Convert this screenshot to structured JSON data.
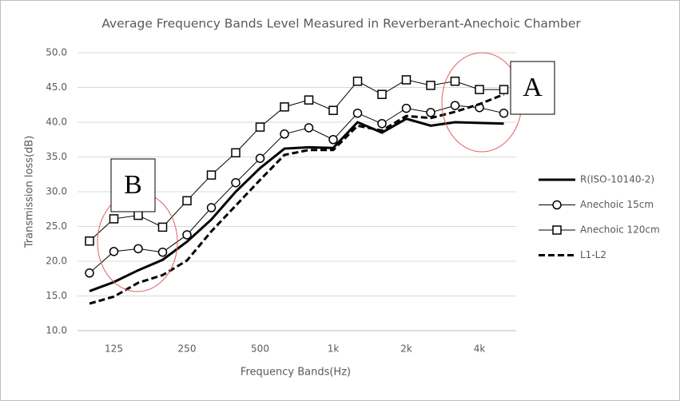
{
  "chart_data": {
    "type": "line",
    "title": "Average Frequency Bands Level Measured in Reverberant-Anechoic Chamber",
    "x_label": "Frequency Bands(Hz)",
    "y_label": "Transmission loss(dB)",
    "categories": [
      null,
      "125",
      null,
      null,
      "250",
      null,
      null,
      "500",
      null,
      null,
      "1k",
      null,
      null,
      "2k",
      null,
      null,
      "4k",
      null
    ],
    "ylim": [
      10,
      50
    ],
    "yticks": [
      {
        "value": 10,
        "label": "10.0"
      },
      {
        "value": 15,
        "label": "15.0"
      },
      {
        "value": 20,
        "label": "20.0"
      },
      {
        "value": 25,
        "label": "25.0"
      },
      {
        "value": 30,
        "label": "30.0"
      },
      {
        "value": 35,
        "label": "35.0"
      },
      {
        "value": 40,
        "label": "40.0"
      },
      {
        "value": 45,
        "label": "45.0"
      },
      {
        "value": 50,
        "label": "50.0"
      }
    ],
    "grid": true,
    "legend": "right",
    "series": [
      {
        "name": "R(ISO-10140-2)",
        "color": "#000000",
        "marker": "none",
        "dash": "solid",
        "width": 3,
        "values": [
          15.7,
          17.0,
          18.7,
          20.2,
          22.8,
          26.0,
          30.0,
          33.4,
          36.2,
          36.4,
          36.3,
          40.0,
          38.5,
          40.5,
          39.5,
          40.0,
          39.9,
          39.8
        ]
      },
      {
        "name": "Anechoic 15cm",
        "color": "#000000",
        "marker": "circle",
        "dash": "solid",
        "width": 1,
        "values": [
          18.3,
          21.4,
          21.8,
          21.3,
          23.8,
          27.7,
          31.3,
          34.8,
          38.3,
          39.2,
          37.5,
          41.3,
          39.8,
          42.0,
          41.4,
          42.4,
          42.1,
          41.3
        ]
      },
      {
        "name": "Anechoic 120cm",
        "color": "#000000",
        "marker": "square",
        "dash": "solid",
        "width": 1,
        "values": [
          22.9,
          26.1,
          26.6,
          24.9,
          28.7,
          32.4,
          35.6,
          39.3,
          42.2,
          43.2,
          41.7,
          45.9,
          44.0,
          46.1,
          45.3,
          45.9,
          44.7,
          44.7
        ]
      },
      {
        "name": "L1-L2",
        "color": "#000000",
        "marker": "none",
        "dash": "dashed",
        "width": 3,
        "values": [
          13.9,
          14.9,
          16.9,
          18.0,
          20.1,
          24.3,
          28.0,
          31.7,
          35.3,
          36.0,
          36.0,
          39.5,
          38.8,
          40.9,
          40.6,
          41.5,
          42.6,
          44.0
        ]
      }
    ],
    "annotations": [
      "A",
      "B"
    ]
  }
}
